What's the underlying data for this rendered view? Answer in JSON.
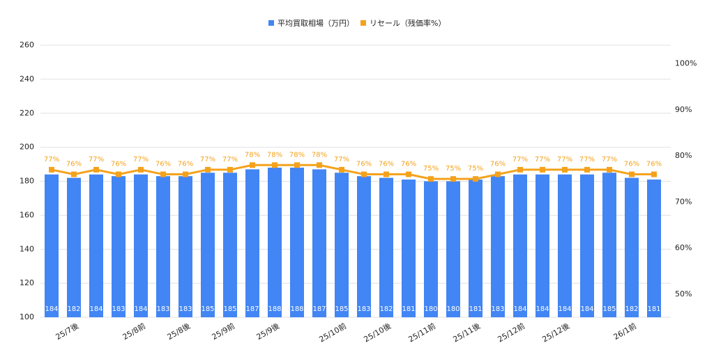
{
  "chart_data": {
    "type": "bar-line",
    "categories": [
      null,
      "25/7後",
      null,
      null,
      "25/8前",
      null,
      "25/8後",
      null,
      "25/9前",
      null,
      "25/9後",
      null,
      null,
      "25/10前",
      null,
      "25/10後",
      null,
      "25/11前",
      null,
      "25/11後",
      null,
      "25/12前",
      null,
      "25/12後",
      null,
      null,
      "26/1前",
      null
    ],
    "series": [
      {
        "name": "平均買取相場（万円）",
        "color": "#4285f4",
        "type": "bar",
        "values": [
          184,
          182,
          184,
          183,
          184,
          183,
          183,
          185,
          185,
          187,
          188,
          188,
          187,
          185,
          183,
          182,
          181,
          180,
          180,
          181,
          183,
          184,
          184,
          184,
          184,
          185,
          182,
          181
        ]
      },
      {
        "name": "リセール（残価率%）",
        "color": "#f4a21c",
        "type": "line",
        "axis": "y2",
        "values": [
          77,
          76,
          77,
          76,
          77,
          76,
          76,
          77,
          77,
          78,
          78,
          78,
          78,
          77,
          76,
          76,
          76,
          75,
          75,
          75,
          76,
          77,
          77,
          77,
          77,
          77,
          76,
          76
        ],
        "value_labels": [
          "77%",
          "76%",
          "77%",
          "76%",
          "77%",
          "76%",
          "76%",
          "77%",
          "77%",
          "78%",
          "78%",
          "78%",
          "78%",
          "77%",
          "76%",
          "76%",
          "76%",
          "75%",
          "75%",
          "75%",
          "76%",
          "77%",
          "77%",
          "77%",
          "77%",
          "77%",
          "76%",
          "76%"
        ]
      }
    ],
    "ylim": [
      100,
      260
    ],
    "yticks": [
      100,
      120,
      140,
      160,
      180,
      200,
      220,
      240,
      260
    ],
    "y2lim": [
      45,
      104
    ],
    "y2ticks": [
      {
        "value": 50,
        "label": "50%"
      },
      {
        "value": 60,
        "label": "60%"
      },
      {
        "value": 70,
        "label": "70%"
      },
      {
        "value": 80,
        "label": "80%"
      },
      {
        "value": 90,
        "label": "90%"
      },
      {
        "value": 100,
        "label": "100%"
      }
    ],
    "grid": true,
    "legend": "top"
  }
}
